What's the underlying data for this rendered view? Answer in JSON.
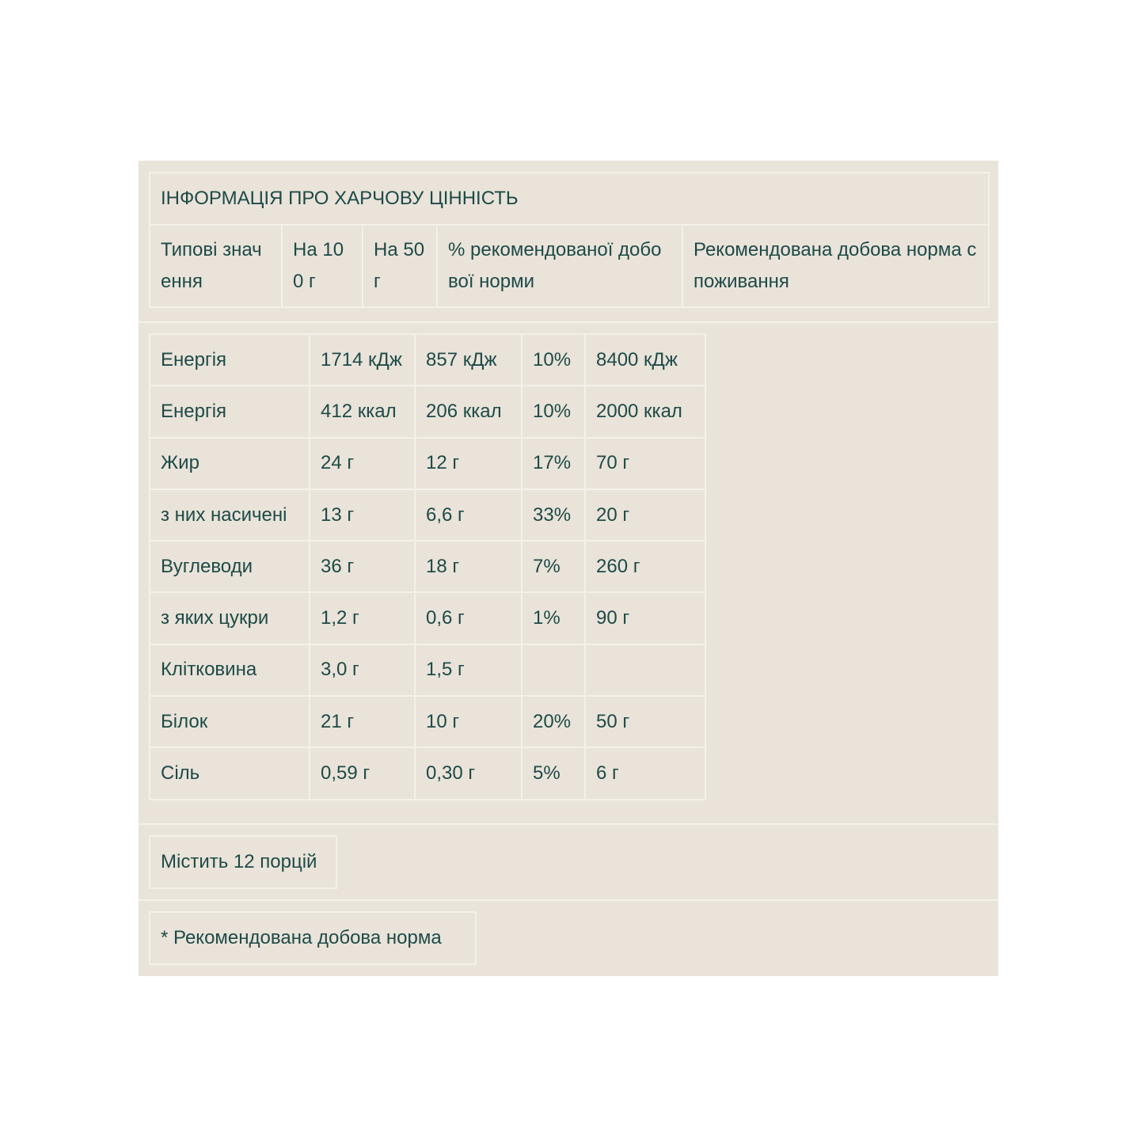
{
  "title": "ІНФОРМАЦІЯ ПРО ХАРЧОВУ ЦІННІСТЬ",
  "headers": [
    "Типові значення",
    "На 100 г",
    "На 50 г",
    "% рекомендованої добової норми",
    "Рекомендована добова норма споживання"
  ],
  "rows": [
    [
      "Енергія",
      "1714 кДж",
      "857 кДж",
      "10%",
      "8400 кДж"
    ],
    [
      "Енергія",
      "412 ккал",
      "206 ккал",
      "10%",
      "2000 ккал"
    ],
    [
      "Жир",
      "24 г",
      "12 г",
      "17%",
      "70 г"
    ],
    [
      "з них насичені",
      "13 г",
      "6,6 г",
      "33%",
      "20 г"
    ],
    [
      "Вуглеводи",
      "36 г",
      "18 г",
      "7%",
      "260 г"
    ],
    [
      "з яких цукри",
      "1,2 г",
      "0,6 г",
      "1%",
      "90 г"
    ],
    [
      "Клітковина",
      "3,0 г",
      "1,5 г",
      "",
      ""
    ],
    [
      "Білок",
      "21 г",
      "10 г",
      "20%",
      "50 г"
    ],
    [
      "Сіль",
      "0,59 г",
      "0,30 г",
      "5%",
      "6 г"
    ]
  ],
  "servings": "Містить 12 порцій",
  "footnote": "* Рекомендована добова норма",
  "colors": {
    "background": "#e9e3da",
    "text": "#1e4a47",
    "border": "#f4f0ea"
  }
}
